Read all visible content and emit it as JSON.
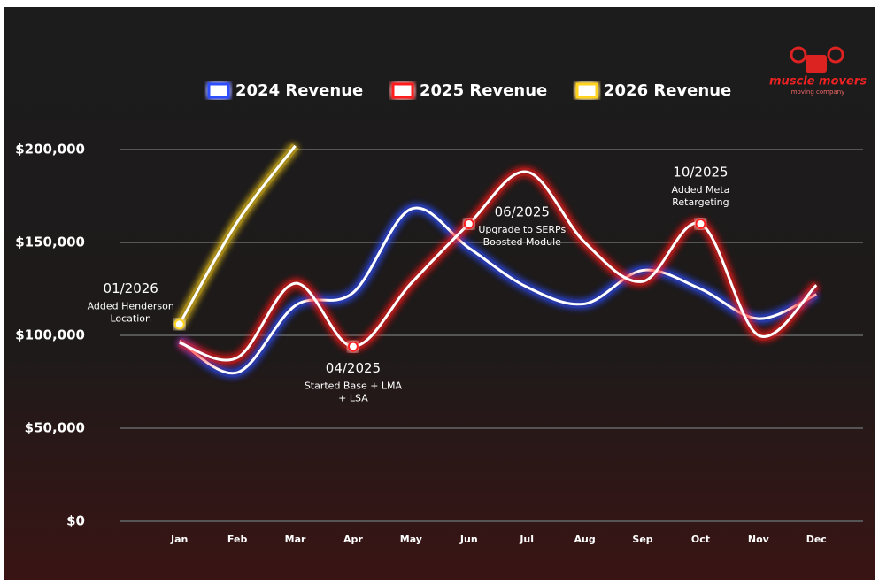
{
  "chart_data": {
    "type": "line",
    "logo": {
      "name": "muscle movers",
      "tagline": "moving company"
    },
    "categories": [
      "Jan",
      "Feb",
      "Mar",
      "Apr",
      "May",
      "Jun",
      "Jul",
      "Aug",
      "Sep",
      "Oct",
      "Nov",
      "Dec"
    ],
    "series": [
      {
        "name": "2024 Revenue",
        "color": "#2f4dff",
        "values": [
          97000,
          80000,
          116000,
          123000,
          168000,
          147000,
          126000,
          117000,
          135000,
          125000,
          109000,
          122000
        ]
      },
      {
        "name": "2025 Revenue",
        "color": "#ff1a1a",
        "values": [
          96000,
          88000,
          128000,
          94000,
          128000,
          160000,
          188000,
          150000,
          129000,
          160000,
          100000,
          127000
        ]
      },
      {
        "name": "2026 Revenue",
        "color": "#ffd21a",
        "values": [
          106000,
          161000,
          202000,
          null,
          null,
          null,
          null,
          null,
          null,
          null,
          null,
          null
        ]
      }
    ],
    "ylim": [
      0,
      200000
    ],
    "yticks": [
      {
        "value": 0,
        "label": "$0"
      },
      {
        "value": 50000,
        "label": "$50,000"
      },
      {
        "value": 100000,
        "label": "$100,000"
      },
      {
        "value": 150000,
        "label": "$150,000"
      },
      {
        "value": 200000,
        "label": "$200,000"
      }
    ],
    "grid": true,
    "annotations": [
      {
        "title": "01/2026",
        "lines": [
          "Added Henderson",
          "Location"
        ]
      },
      {
        "title": "04/2025",
        "lines": [
          "Started Base + LMA",
          "+ LSA"
        ]
      },
      {
        "title": "06/2025",
        "lines": [
          "Upgrade to SERPs",
          "Boosted Module"
        ]
      },
      {
        "title": "10/2025",
        "lines": [
          "Added Meta",
          "Retargeting"
        ]
      }
    ]
  }
}
